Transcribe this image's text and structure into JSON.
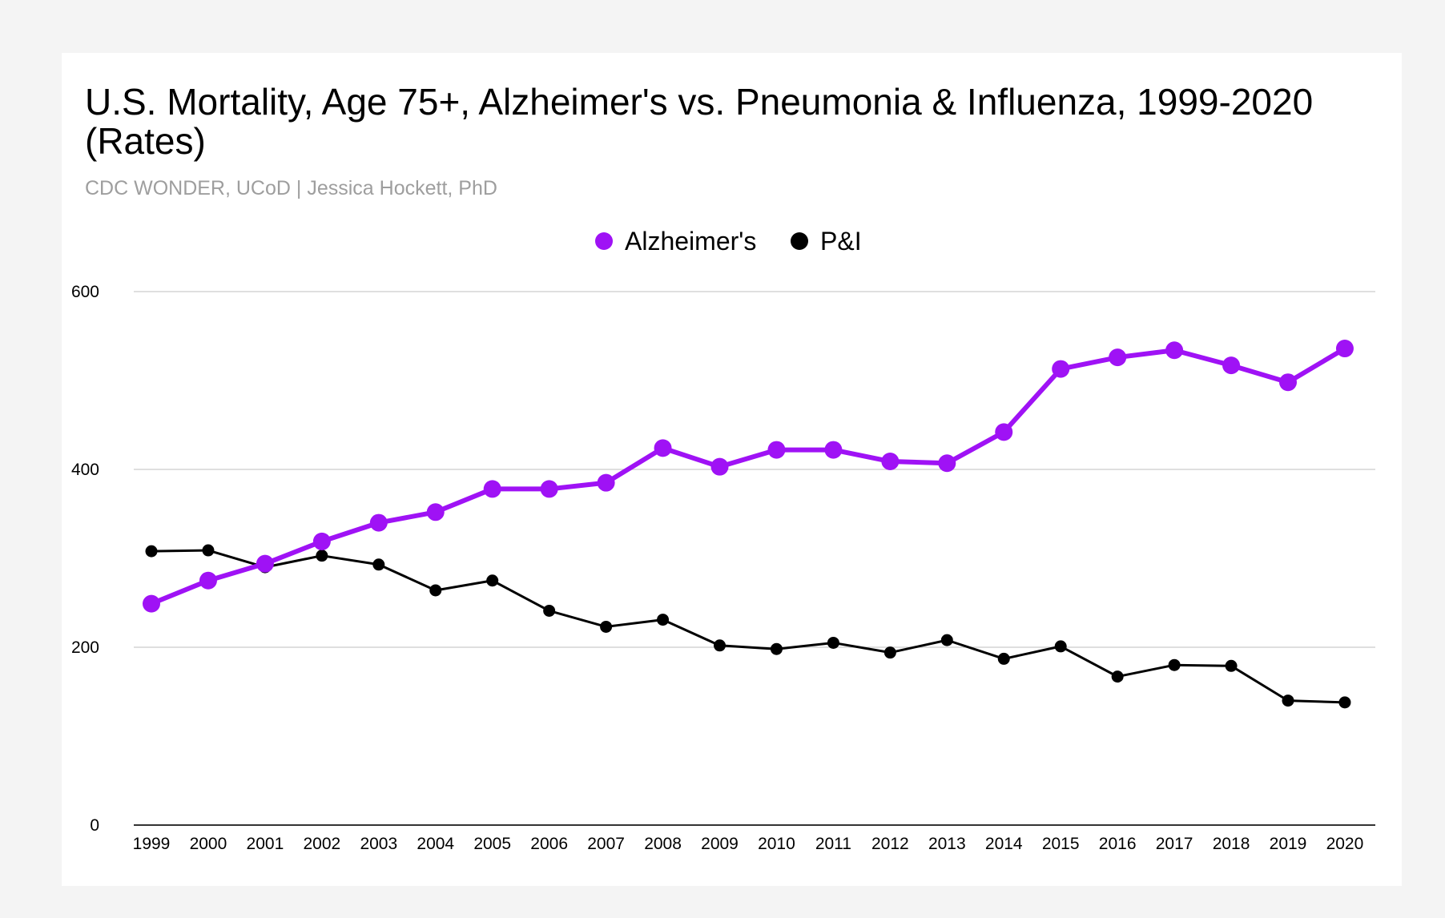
{
  "chart_data": {
    "type": "line",
    "title": "U.S. Mortality, Age 75+, Alzheimer's vs. Pneumonia & Influenza, 1999-2020 (Rates)",
    "subtitle": "CDC WONDER, UCoD | Jessica Hockett, PhD",
    "xlabel": "",
    "ylabel": "",
    "ylim": [
      0,
      600
    ],
    "yticks": [
      "0",
      "200",
      "400",
      "600"
    ],
    "grid": true,
    "legend_position": "top-center",
    "categories": [
      "1999",
      "2000",
      "2001",
      "2002",
      "2003",
      "2004",
      "2005",
      "2006",
      "2007",
      "2008",
      "2009",
      "2010",
      "2011",
      "2012",
      "2013",
      "2014",
      "2015",
      "2016",
      "2017",
      "2018",
      "2019",
      "2020"
    ],
    "series": [
      {
        "name": "Alzheimer's",
        "color": "#9f12f5",
        "values": [
          249,
          275,
          294,
          319,
          340,
          352,
          378,
          378,
          385,
          424,
          403,
          422,
          422,
          409,
          407,
          442,
          513,
          526,
          534,
          517,
          498,
          536
        ]
      },
      {
        "name": "P&I",
        "color": "#000000",
        "values": [
          308,
          309,
          290,
          303,
          293,
          264,
          275,
          241,
          223,
          231,
          202,
          198,
          205,
          194,
          208,
          187,
          201,
          167,
          180,
          179,
          140,
          138
        ]
      }
    ]
  }
}
